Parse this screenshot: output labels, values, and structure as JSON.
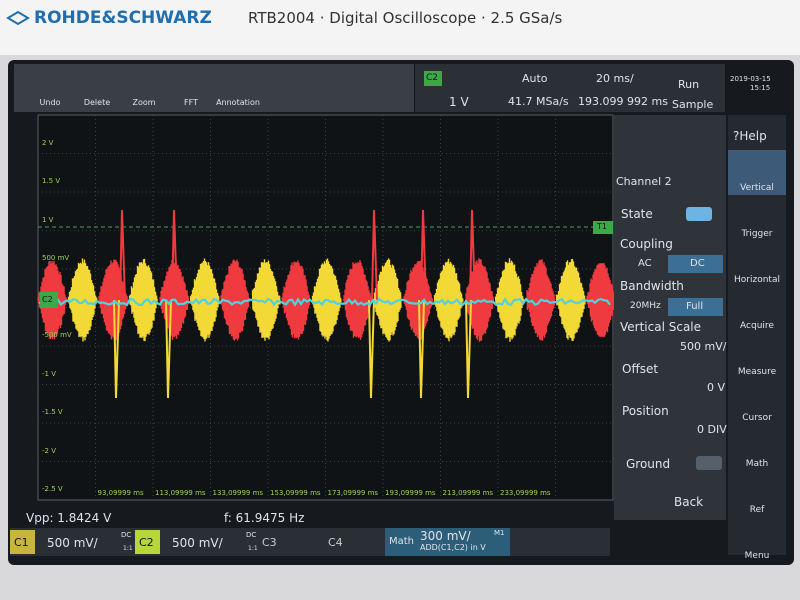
{
  "header": {
    "brand": "ROHDE&SCHWARZ",
    "title": "RTB2004 · Digital Oscilloscope · 2.5 GSa/s"
  },
  "toolbar": [
    "Undo",
    "Delete",
    "Zoom",
    "FFT",
    "Annotation"
  ],
  "acquisition": {
    "trigger_source": "C2",
    "trigger_mode": "Auto",
    "timebase": "20 ms/",
    "run_state": "Run",
    "trigger_level": "1 V",
    "sample_rate": "41.7 MSa/s",
    "position": "193.099 992 ms",
    "acq_mode": "Sample",
    "date": "2019-03-15",
    "time": "15:15"
  },
  "graticule": {
    "y_labels": [
      "2 V",
      "1.5 V",
      "1 V",
      "500 mV",
      "-500 mV",
      "-1 V",
      "-1.5 V",
      "-2 V",
      "-2.5 V"
    ],
    "x_labels": [
      "93,09999 ms",
      "113,09999 ms",
      "133,09999 ms",
      "153,09999 ms",
      "173,09999 ms",
      "193,09999 ms",
      "213,09999 ms",
      "233,09999 ms"
    ],
    "trigger_marker": "T1",
    "channel_marker": "C2"
  },
  "channel_panel": {
    "help": "?Help",
    "title": "Channel 2",
    "state": "State",
    "coupling": "Coupling",
    "ac": "AC",
    "dc": "DC",
    "bandwidth": "Bandwidth",
    "bw_20": "20MHz",
    "bw_full": "Full",
    "vertical_scale": "Vertical Scale",
    "scale_value": "500 mV/",
    "offset": "Offset",
    "offset_value": "0 V",
    "position": "Position",
    "position_value": "0 DIV",
    "ground": "Ground",
    "back": "Back"
  },
  "side_menu": [
    "Vertical",
    "Trigger",
    "Horizontal",
    "Acquire",
    "Measure",
    "Cursor",
    "Math",
    "Ref",
    "Menu"
  ],
  "measurements": [
    "Vpp: 1.8424 V",
    "f: 61.9475 Hz"
  ],
  "channels": [
    {
      "name": "C1",
      "scale": "500 mV/",
      "coupling": "DC",
      "probe": "1:1"
    },
    {
      "name": "C2",
      "scale": "500 mV/",
      "coupling": "DC",
      "probe": "1:1"
    },
    {
      "name": "C3"
    },
    {
      "name": "C4"
    }
  ],
  "math": {
    "name": "Math",
    "scale": "300 mV/",
    "function": "ADD(C1,C2) in V",
    "label": "M1"
  }
}
